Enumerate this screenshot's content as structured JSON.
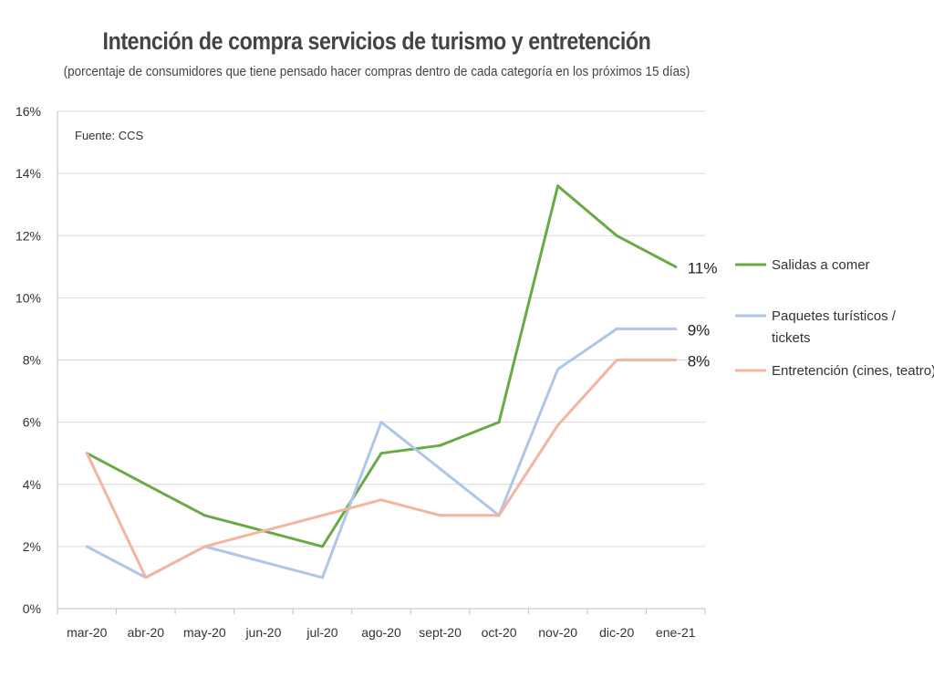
{
  "chart_data": {
    "type": "line",
    "title": "Intención de compra servicios de turismo y entretención",
    "subtitle": "(porcentaje de consumidores que tiene pensado hacer compras dentro de cada categoría en los próximos 15 días)",
    "source": "Fuente: CCS",
    "categories": [
      "mar-20",
      "abr-20",
      "may-20",
      "jun-20",
      "jul-20",
      "ago-20",
      "sept-20",
      "oct-20",
      "nov-20",
      "dic-20",
      "ene-21"
    ],
    "ylim": [
      0,
      16
    ],
    "yticks": [
      0,
      2,
      4,
      6,
      8,
      10,
      12,
      14,
      16
    ],
    "ytick_labels": [
      "0%",
      "2%",
      "4%",
      "6%",
      "8%",
      "10%",
      "12%",
      "14%",
      "16%"
    ],
    "grid": true,
    "legend_position": "right",
    "series": [
      {
        "name": "Salidas a comer",
        "legend_lines": [
          "Salidas a comer"
        ],
        "color": "#6aaa45",
        "values": [
          5.0,
          4.0,
          3.0,
          2.5,
          2.0,
          5.0,
          5.25,
          6.0,
          13.6,
          12.0,
          11.0
        ],
        "end_label": "11%"
      },
      {
        "name": "Paquetes turísticos / tickets",
        "legend_lines": [
          "Paquetes turísticos /",
          "tickets"
        ],
        "color": "#aec6e8",
        "values": [
          2.0,
          1.0,
          2.0,
          1.5,
          1.0,
          6.0,
          4.5,
          3.0,
          7.7,
          9.0,
          9.0
        ],
        "end_label": "9%"
      },
      {
        "name": "Entretención (cines, teatro)",
        "legend_lines": [
          "Entretención (cines, teatro)"
        ],
        "color": "#f4b4a0",
        "values": [
          5.0,
          1.0,
          2.0,
          2.5,
          3.0,
          3.5,
          3.0,
          3.0,
          5.9,
          8.0,
          8.0
        ],
        "end_label": "8%"
      }
    ]
  }
}
